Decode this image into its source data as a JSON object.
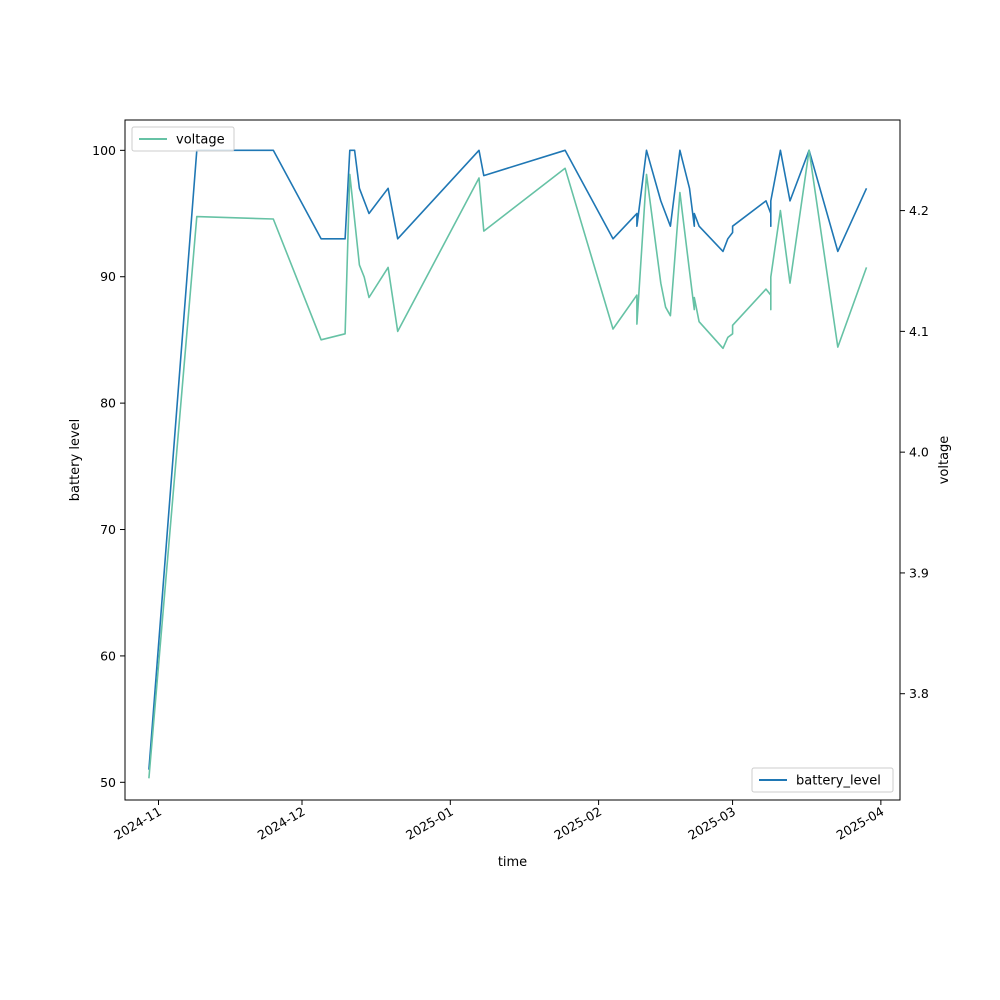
{
  "chart_data": {
    "type": "line",
    "xlabel": "time",
    "ylabel": "battery level",
    "y2label": "voltage",
    "x_ticks": [
      "2024-11",
      "2024-12",
      "2025-01",
      "2025-02",
      "2025-03",
      "2025-04"
    ],
    "y_ticks": [
      50,
      60,
      70,
      80,
      90,
      100
    ],
    "y2_ticks": [
      3.8,
      3.9,
      4.0,
      4.1,
      4.2
    ],
    "xlim": [
      "2024-10-25",
      "2025-04-05"
    ],
    "ylim": [
      48.6,
      102.4
    ],
    "y2lim": [
      3.712,
      4.275
    ],
    "grid": false,
    "series": [
      {
        "name": "battery_level",
        "axis": "left",
        "color": "#1f77b4",
        "legend_position": "lower-right",
        "points": [
          [
            "2024-10-30",
            51
          ],
          [
            "2024-11-09",
            100
          ],
          [
            "2024-11-25",
            100
          ],
          [
            "2024-12-05",
            93
          ],
          [
            "2024-12-10",
            93
          ],
          [
            "2024-12-11",
            100
          ],
          [
            "2024-12-12",
            100
          ],
          [
            "2024-12-13",
            97
          ],
          [
            "2024-12-15",
            95
          ],
          [
            "2024-12-19",
            97
          ],
          [
            "2024-12-21",
            93
          ],
          [
            "2025-01-07",
            100
          ],
          [
            "2025-01-08",
            98
          ],
          [
            "2025-01-25",
            100
          ],
          [
            "2025-02-04",
            93
          ],
          [
            "2025-02-09",
            95
          ],
          [
            "2025-02-09",
            94
          ],
          [
            "2025-02-11",
            100
          ],
          [
            "2025-02-14",
            96
          ],
          [
            "2025-02-16",
            94
          ],
          [
            "2025-02-18",
            100
          ],
          [
            "2025-02-20",
            97
          ],
          [
            "2025-02-21",
            94
          ],
          [
            "2025-02-21",
            95
          ],
          [
            "2025-02-22",
            94
          ],
          [
            "2025-02-27",
            92
          ],
          [
            "2025-02-28",
            93
          ],
          [
            "2025-03-01",
            93.5
          ],
          [
            "2025-03-01",
            94
          ],
          [
            "2025-03-08",
            96
          ],
          [
            "2025-03-09",
            95
          ],
          [
            "2025-03-09",
            94
          ],
          [
            "2025-03-09",
            96
          ],
          [
            "2025-03-11",
            100
          ],
          [
            "2025-03-13",
            96
          ],
          [
            "2025-03-17",
            100
          ],
          [
            "2025-03-23",
            92
          ],
          [
            "2025-03-29",
            97
          ]
        ]
      },
      {
        "name": "voltage",
        "axis": "right",
        "color": "#66c2a5",
        "legend_position": "upper-left",
        "points": [
          [
            "2024-10-30",
            3.73
          ],
          [
            "2024-11-09",
            4.195
          ],
          [
            "2024-11-25",
            4.193
          ],
          [
            "2024-12-05",
            4.093
          ],
          [
            "2024-12-10",
            4.098
          ],
          [
            "2024-12-11",
            4.23
          ],
          [
            "2024-12-13",
            4.155
          ],
          [
            "2024-12-14",
            4.145
          ],
          [
            "2024-12-15",
            4.128
          ],
          [
            "2024-12-19",
            4.153
          ],
          [
            "2024-12-21",
            4.1
          ],
          [
            "2025-01-07",
            4.227
          ],
          [
            "2025-01-08",
            4.183
          ],
          [
            "2025-01-25",
            4.235
          ],
          [
            "2025-02-04",
            4.102
          ],
          [
            "2025-02-09",
            4.13
          ],
          [
            "2025-02-09",
            4.106
          ],
          [
            "2025-02-11",
            4.23
          ],
          [
            "2025-02-14",
            4.14
          ],
          [
            "2025-02-15",
            4.12
          ],
          [
            "2025-02-16",
            4.113
          ],
          [
            "2025-02-18",
            4.215
          ],
          [
            "2025-02-20",
            4.15
          ],
          [
            "2025-02-21",
            4.118
          ],
          [
            "2025-02-21",
            4.128
          ],
          [
            "2025-02-22",
            4.108
          ],
          [
            "2025-02-27",
            4.086
          ],
          [
            "2025-02-28",
            4.095
          ],
          [
            "2025-03-01",
            4.098
          ],
          [
            "2025-03-01",
            4.105
          ],
          [
            "2025-03-08",
            4.135
          ],
          [
            "2025-03-09",
            4.13
          ],
          [
            "2025-03-09",
            4.118
          ],
          [
            "2025-03-09",
            4.145
          ],
          [
            "2025-03-11",
            4.2
          ],
          [
            "2025-03-13",
            4.14
          ],
          [
            "2025-03-17",
            4.25
          ],
          [
            "2025-03-23",
            4.087
          ],
          [
            "2025-03-29",
            4.153
          ]
        ]
      }
    ]
  }
}
